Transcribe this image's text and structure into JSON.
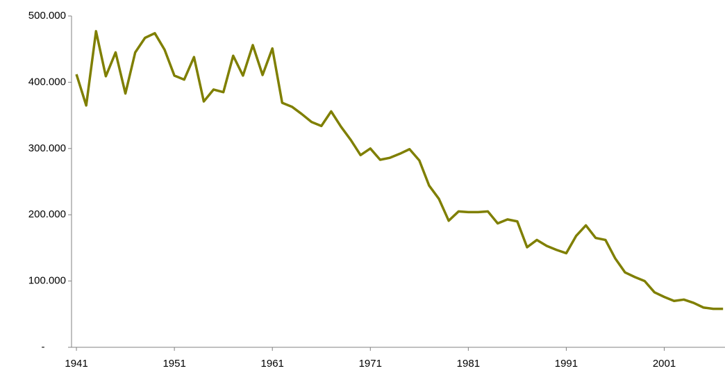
{
  "chart_data": {
    "type": "line",
    "x": [
      1941,
      1942,
      1943,
      1944,
      1945,
      1946,
      1947,
      1948,
      1949,
      1950,
      1951,
      1952,
      1953,
      1954,
      1955,
      1956,
      1957,
      1958,
      1959,
      1960,
      1961,
      1962,
      1963,
      1964,
      1965,
      1966,
      1967,
      1968,
      1969,
      1970,
      1971,
      1972,
      1973,
      1974,
      1975,
      1976,
      1977,
      1978,
      1979,
      1980,
      1981,
      1982,
      1983,
      1984,
      1985,
      1986,
      1987,
      1988,
      1989,
      1990,
      1991,
      1992,
      1993,
      1994,
      1995,
      1996,
      1997,
      1998,
      1999,
      2000,
      2001,
      2002,
      2003,
      2004,
      2005,
      2006,
      2007
    ],
    "series": [
      {
        "color": "#7f7f00",
        "values": [
          412000,
          365000,
          477000,
          409000,
          445000,
          383000,
          445000,
          467000,
          474000,
          449000,
          410000,
          404000,
          438000,
          371000,
          389000,
          385000,
          440000,
          410000,
          456000,
          411000,
          451000,
          369000,
          363000,
          352000,
          340000,
          334000,
          356000,
          333000,
          313000,
          290000,
          300000,
          283000,
          286000,
          292000,
          299000,
          282000,
          244000,
          224000,
          191000,
          205000,
          204000,
          204000,
          205000,
          187000,
          193000,
          190000,
          151000,
          162000,
          153000,
          147000,
          142000,
          168000,
          184000,
          165000,
          162000,
          134000,
          113000,
          106000,
          100000,
          83000,
          76000,
          70000,
          72000,
          67000,
          60000,
          58000,
          58000
        ]
      }
    ],
    "xlim": [
      1940.5,
      2007.2
    ],
    "xticks": [
      1941,
      1951,
      1961,
      1971,
      1981,
      1991,
      2001
    ],
    "ylim": [
      0,
      500000
    ],
    "yticks": [
      {
        "value": 0,
        "label": "-"
      },
      {
        "value": 100000,
        "label": "100.000"
      },
      {
        "value": 200000,
        "label": "200.000"
      },
      {
        "value": 300000,
        "label": "300.000"
      },
      {
        "value": 400000,
        "label": "400.000"
      },
      {
        "value": 500000,
        "label": "500.000"
      }
    ]
  }
}
